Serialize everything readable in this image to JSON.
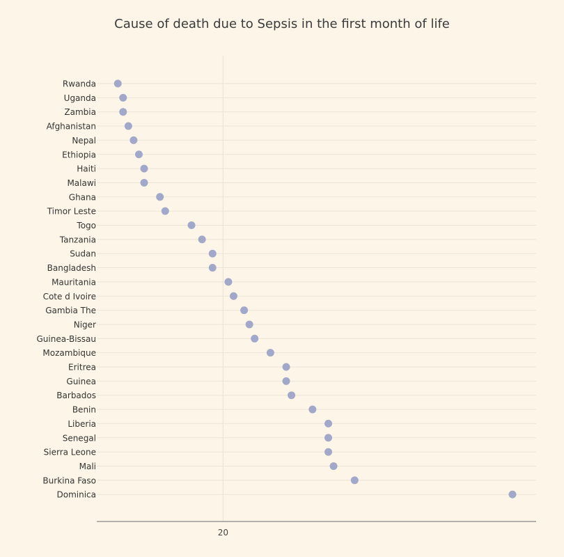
{
  "chart_data": {
    "type": "scatter",
    "title": "Cause of death due to Sepsis in the first month of life",
    "xlabel": "",
    "ylabel": "",
    "xlim": [
      15.2,
      31.9
    ],
    "x_ticks": [
      20
    ],
    "grid": true,
    "series": [
      {
        "color": "#a2a8c9",
        "points": [
          {
            "category": "Rwanda",
            "value": 16.0
          },
          {
            "category": "Uganda",
            "value": 16.2
          },
          {
            "category": "Zambia",
            "value": 16.2
          },
          {
            "category": "Afghanistan",
            "value": 16.4
          },
          {
            "category": "Nepal",
            "value": 16.6
          },
          {
            "category": "Ethiopia",
            "value": 16.8
          },
          {
            "category": "Haiti",
            "value": 17.0
          },
          {
            "category": "Malawi",
            "value": 17.0
          },
          {
            "category": "Ghana",
            "value": 17.6
          },
          {
            "category": "Timor Leste",
            "value": 17.8
          },
          {
            "category": "Togo",
            "value": 18.8
          },
          {
            "category": "Tanzania",
            "value": 19.2
          },
          {
            "category": "Sudan",
            "value": 19.6
          },
          {
            "category": "Bangladesh",
            "value": 19.6
          },
          {
            "category": "Mauritania",
            "value": 20.2
          },
          {
            "category": "Cote d Ivoire",
            "value": 20.4
          },
          {
            "category": "Gambia The",
            "value": 20.8
          },
          {
            "category": "Niger",
            "value": 21.0
          },
          {
            "category": "Guinea-Bissau",
            "value": 21.2
          },
          {
            "category": "Mozambique",
            "value": 21.8
          },
          {
            "category": "Eritrea",
            "value": 22.4
          },
          {
            "category": "Guinea",
            "value": 22.4
          },
          {
            "category": "Barbados",
            "value": 22.6
          },
          {
            "category": "Benin",
            "value": 23.4
          },
          {
            "category": "Liberia",
            "value": 24.0
          },
          {
            "category": "Senegal",
            "value": 24.0
          },
          {
            "category": "Sierra Leone",
            "value": 24.0
          },
          {
            "category": "Mali",
            "value": 24.2
          },
          {
            "category": "Burkina Faso",
            "value": 25.0
          },
          {
            "category": "Dominica",
            "value": 31.0
          }
        ]
      }
    ]
  }
}
